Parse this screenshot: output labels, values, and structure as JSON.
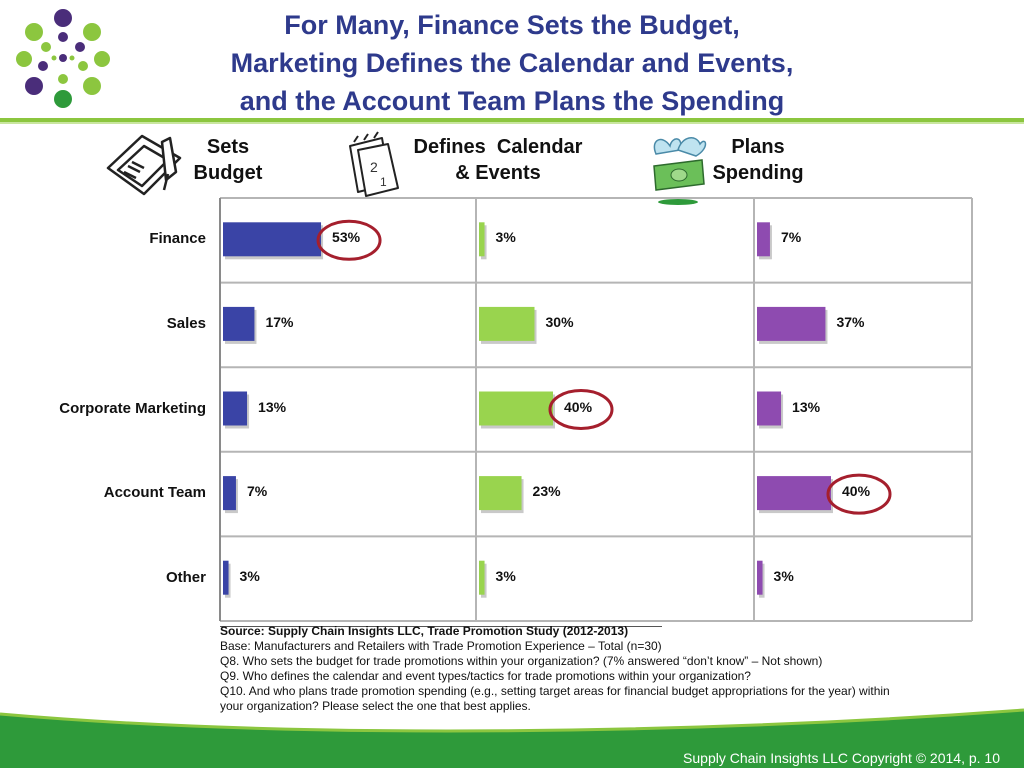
{
  "title": {
    "line1": "For Many, Finance Sets the Budget,",
    "line2": "Marketing Defines the Calendar and Events,",
    "line3": "and the Account Team Plans the Spending"
  },
  "columns": [
    {
      "label1": "Sets",
      "label2": "Budget",
      "icon": "checkbook-icon"
    },
    {
      "label1": "Defines  Calendar",
      "label2": "& Events",
      "icon": "calendar-icon"
    },
    {
      "label1": "Plans",
      "label2": "Spending",
      "icon": "flying-money-icon"
    }
  ],
  "chart_data": {
    "type": "bar",
    "categories": [
      "Finance",
      "Sales",
      "Corporate Marketing",
      "Account Team",
      "Other"
    ],
    "series": [
      {
        "name": "Sets Budget",
        "values": [
          53,
          17,
          13,
          7,
          3
        ],
        "labels": [
          "53%",
          "17%",
          "13%",
          "7%",
          "3%"
        ],
        "color": "#3a44a6",
        "highlight": 0
      },
      {
        "name": "Defines Calendar & Events",
        "values": [
          3,
          30,
          40,
          23,
          3
        ],
        "labels": [
          "3%",
          "30%",
          "40%",
          "23%",
          "3%"
        ],
        "color": "#99d44e",
        "highlight": 2
      },
      {
        "name": "Plans Spending",
        "values": [
          7,
          37,
          13,
          40,
          3
        ],
        "labels": [
          "7%",
          "37%",
          "13%",
          "40%",
          "3%"
        ],
        "color": "#8e4bb0",
        "highlight": 3
      }
    ],
    "unit": "%",
    "highlight_color": "#a51f2d",
    "grid": true
  },
  "notes": {
    "source": "Source:  Supply Chain Insights LLC, Trade Promotion Study (2012-2013)",
    "base": "Base:  Manufacturers and Retailers with Trade Promotion Experience – Total (n=30)",
    "q8": "Q8. Who sets the budget for trade promotions within  your organization?  (7% answered “don’t know” – Not shown)",
    "q9": "Q9. Who defines the calendar and event types/tactics for trade promotions within your organization?",
    "q10a": "Q10. And who plans trade promotion spending (e.g., setting target areas for financial budget appropriations for the year) within",
    "q10b": "your organization? Please select the one that best applies."
  },
  "footer": {
    "copyright": "Supply Chain Insights LLC Copyright © 2014, p. 10"
  },
  "colors": {
    "title": "#2e3a8c",
    "accent_green": "#8cc63f",
    "footer_green": "#2e9a3a"
  }
}
